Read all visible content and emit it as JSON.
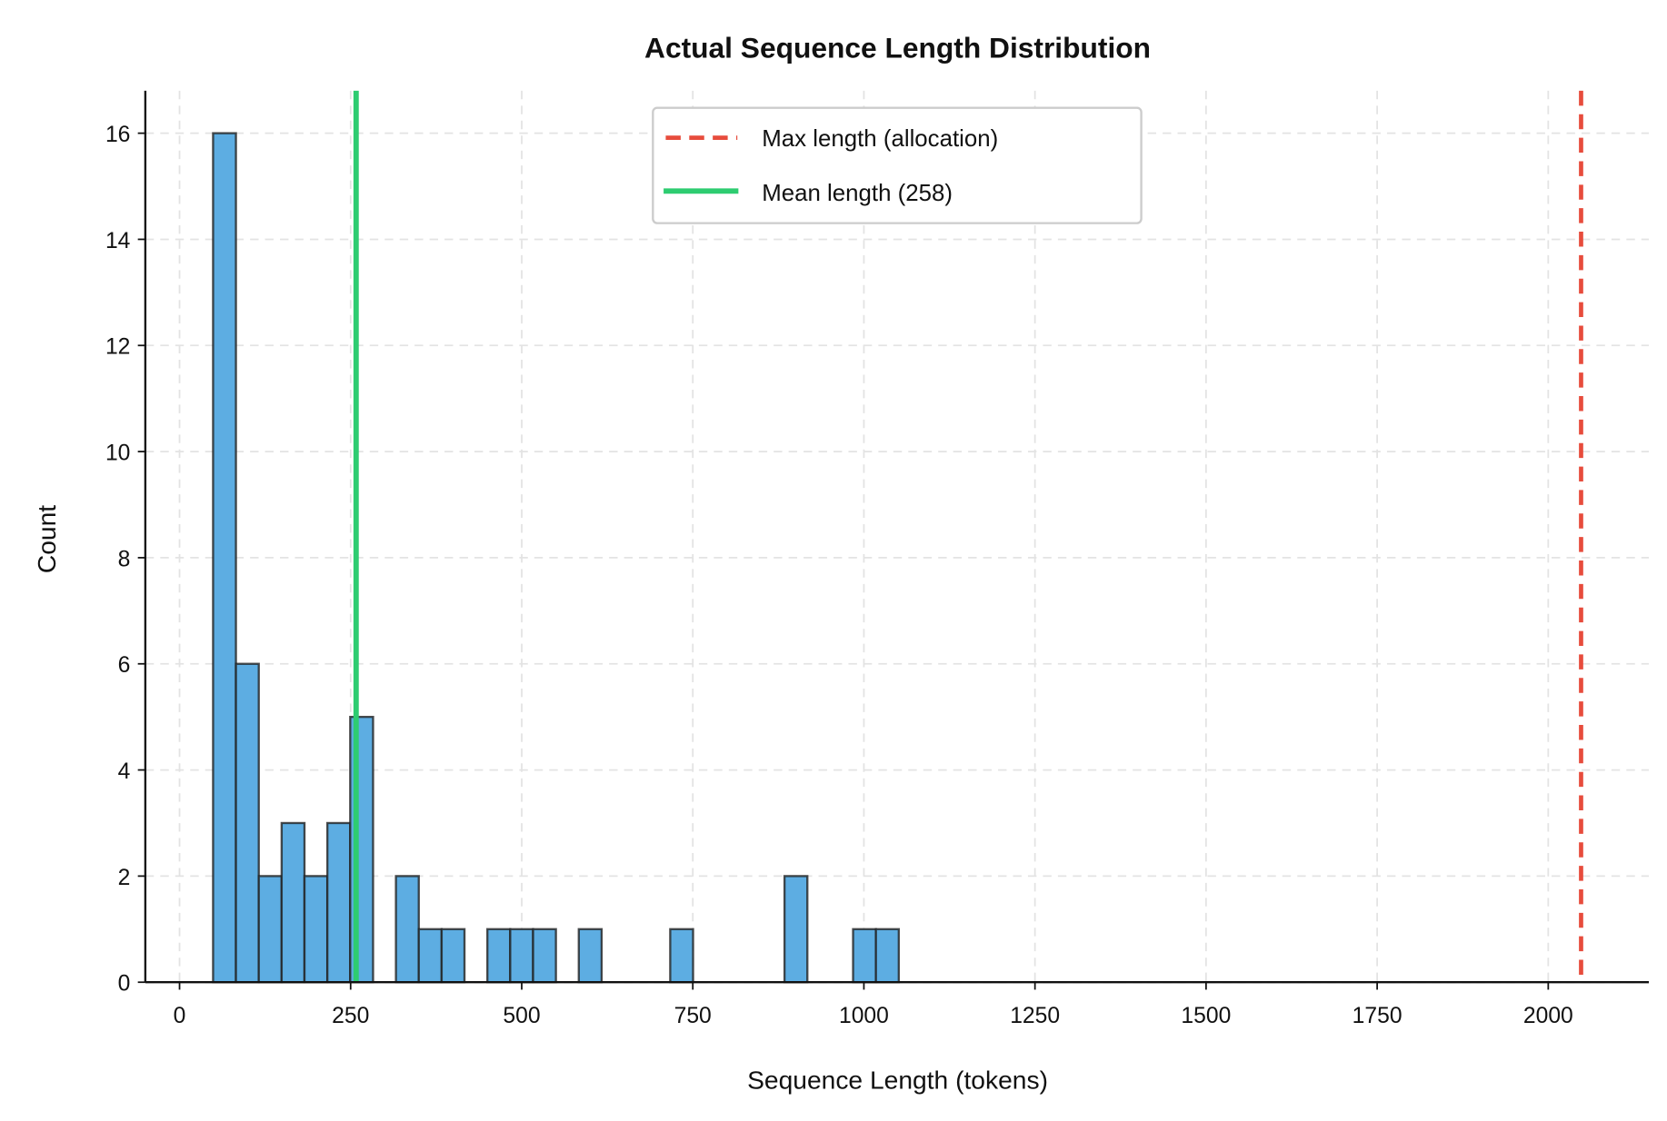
{
  "chart_data": {
    "type": "bar",
    "subtype": "histogram",
    "title": "Actual Sequence Length Distribution",
    "xlabel": "Sequence Length (tokens)",
    "ylabel": "Count",
    "xlim": [
      -50,
      2147
    ],
    "ylim": [
      0,
      16.8
    ],
    "xticks": [
      0,
      250,
      500,
      750,
      1000,
      1250,
      1500,
      1750,
      2000
    ],
    "yticks": [
      0,
      2,
      4,
      6,
      8,
      10,
      12,
      14,
      16
    ],
    "grid": true,
    "bin_start": 49,
    "bin_width": 33.4,
    "counts": [
      16,
      6,
      2,
      3,
      2,
      3,
      5,
      0,
      2,
      1,
      1,
      0,
      1,
      1,
      1,
      0,
      1,
      0,
      0,
      0,
      1,
      0,
      0,
      0,
      0,
      2,
      0,
      0,
      1,
      1
    ],
    "bar_color": "#5dade2",
    "edge_color": "#222222",
    "reference_lines": [
      {
        "name": "Max length (allocation)",
        "x": 2048,
        "style": "dashed",
        "color": "#e74c3c"
      },
      {
        "name": "Mean length (258)",
        "x": 258,
        "style": "solid",
        "color": "#2ecc71"
      }
    ],
    "legend_position": "top-center"
  }
}
